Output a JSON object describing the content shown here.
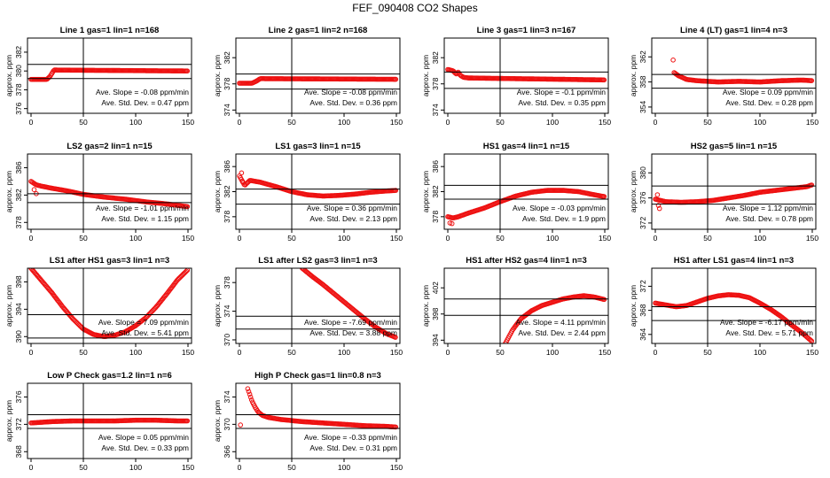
{
  "title": "FEF_090408  CO2 Shapes",
  "ylabel": "approx. ppm",
  "chart_data": [
    {
      "type": "scatter",
      "title": "Line 1 gas=1 lin=1 n=168",
      "xticks": [
        0,
        50,
        100,
        150
      ],
      "xlim": [
        0,
        150
      ],
      "yticks": [
        376,
        378,
        380,
        382
      ],
      "ylim": [
        375.5,
        383.5
      ],
      "hlines": [
        379.2,
        380.7
      ],
      "vline": 50,
      "slope": "Ave. Slope = -0.08 ppm/min",
      "std": "Ave. Std. Dev. = 0.47 ppm",
      "series": [
        {
          "x": [
            0,
            15,
            18,
            22,
            150
          ],
          "y": [
            379.1,
            379.1,
            379.4,
            380.1,
            380.0
          ]
        }
      ]
    },
    {
      "type": "scatter",
      "title": "Line 2 gas=1 lin=2 n=168",
      "xticks": [
        0,
        50,
        100,
        150
      ],
      "xlim": [
        0,
        150
      ],
      "yticks": [
        374,
        378,
        382
      ],
      "ylim": [
        373.5,
        385
      ],
      "hlines": [
        377.2,
        379.5
      ],
      "vline": 50,
      "slope": "Ave. Slope = -0.08 ppm/min",
      "std": "Ave. Std. Dev. = 0.36 ppm",
      "series": [
        {
          "x": [
            0,
            12,
            16,
            20,
            150
          ],
          "y": [
            378.1,
            378.1,
            378.4,
            378.8,
            378.7
          ]
        }
      ]
    },
    {
      "type": "scatter",
      "title": "Line 3 gas=1 lin=3 n=167",
      "xticks": [
        0,
        50,
        100,
        150
      ],
      "xlim": [
        0,
        150
      ],
      "yticks": [
        374,
        378,
        382
      ],
      "ylim": [
        373.5,
        385
      ],
      "hlines": [
        377.3,
        379.8
      ],
      "vline": 50,
      "slope": "Ave. Slope = -0.1 ppm/min",
      "std": "Ave. Std. Dev. = 0.35 ppm",
      "series": [
        {
          "x": [
            0,
            5,
            8,
            10,
            12,
            15,
            20,
            150
          ],
          "y": [
            380.2,
            380.0,
            379.5,
            379.8,
            379.3,
            379.0,
            378.9,
            378.6
          ]
        }
      ]
    },
    {
      "type": "scatter",
      "title": "Line 4 (LT) gas=1 lin=4 n=3",
      "xticks": [
        0,
        50,
        100,
        150
      ],
      "xlim": [
        0,
        150
      ],
      "yticks": [
        354,
        358,
        362
      ],
      "ylim": [
        353,
        365
      ],
      "hlines": [
        357.0,
        359.2
      ],
      "vline": 50,
      "slope": "Ave. Slope = 0.09 ppm/min",
      "std": "Ave. Std. Dev. = 0.28 ppm",
      "series": [
        {
          "x": [
            18,
            22,
            30,
            40,
            60,
            80,
            100,
            120,
            140,
            150
          ],
          "y": [
            359.5,
            359.0,
            358.4,
            358.2,
            358.0,
            358.1,
            358.0,
            358.2,
            358.3,
            358.2
          ]
        }
      ],
      "extra": [
        {
          "x": 17,
          "y": 361.5
        }
      ]
    },
    {
      "type": "scatter",
      "title": "LS2 gas=2 lin=1 n=15",
      "xticks": [
        0,
        50,
        100,
        150
      ],
      "xlim": [
        0,
        150
      ],
      "yticks": [
        378,
        382,
        386
      ],
      "ylim": [
        377,
        388
      ],
      "hlines": [
        380.9,
        382.2
      ],
      "vline": 50,
      "slope": "Ave. Slope = -1.01 ppm/min",
      "std": "Ave. Std. Dev. = 1.15 ppm",
      "series": [
        {
          "x": [
            0,
            5,
            10,
            20,
            35,
            50,
            70,
            90,
            110,
            130,
            150
          ],
          "y": [
            384.0,
            383.5,
            383.3,
            383.0,
            382.6,
            382.1,
            381.7,
            381.4,
            381.0,
            380.7,
            380.3
          ]
        }
      ],
      "extra": [
        {
          "x": 3,
          "y": 382.8
        },
        {
          "x": 5,
          "y": 382.2
        }
      ]
    },
    {
      "type": "scatter",
      "title": "LS1 gas=3 lin=1 n=15",
      "xticks": [
        0,
        50,
        100,
        150
      ],
      "xlim": [
        0,
        150
      ],
      "yticks": [
        378,
        382,
        386
      ],
      "ylim": [
        376,
        388
      ],
      "hlines": [
        380.0,
        382.4
      ],
      "vline": 50,
      "slope": "Ave. Slope = 0.36 ppm/min",
      "std": "Ave. Std. Dev. = 2.13 ppm",
      "series": [
        {
          "x": [
            0,
            5,
            10,
            20,
            35,
            50,
            65,
            80,
            95,
            110,
            125,
            140,
            150
          ],
          "y": [
            384.5,
            383.0,
            383.8,
            383.5,
            382.8,
            382.0,
            381.5,
            381.3,
            381.4,
            381.6,
            381.9,
            382.1,
            382.2
          ]
        }
      ],
      "extra": [
        {
          "x": 2,
          "y": 385.0
        },
        {
          "x": 3,
          "y": 383.6
        }
      ]
    },
    {
      "type": "scatter",
      "title": "HS1 gas=4 lin=1 n=15",
      "xticks": [
        0,
        50,
        100,
        150
      ],
      "xlim": [
        0,
        150
      ],
      "yticks": [
        378,
        382,
        386
      ],
      "ylim": [
        376,
        388
      ],
      "hlines": [
        380.8,
        383.0
      ],
      "vline": 50,
      "slope": "Ave. Slope = -0.03 ppm/min",
      "std": "Ave. Std. Dev. = 1.9 ppm",
      "series": [
        {
          "x": [
            0,
            5,
            10,
            20,
            35,
            50,
            65,
            80,
            95,
            110,
            125,
            140,
            150
          ],
          "y": [
            378.0,
            377.8,
            378.0,
            378.6,
            379.4,
            380.4,
            381.3,
            381.9,
            382.2,
            382.2,
            382.0,
            381.5,
            381.2
          ]
        }
      ],
      "extra": [
        {
          "x": 2,
          "y": 377.0
        },
        {
          "x": 4,
          "y": 376.9
        }
      ]
    },
    {
      "type": "scatter",
      "title": "HS2 gas=5 lin=1 n=15",
      "xticks": [
        0,
        50,
        100,
        150
      ],
      "xlim": [
        0,
        150
      ],
      "yticks": [
        372,
        376,
        380
      ],
      "ylim": [
        371,
        383
      ],
      "hlines": [
        375.0,
        377.9
      ],
      "vline": 50,
      "slope": "Ave. Slope = 1.12 ppm/min",
      "std": "Ave. Std. Dev. = 0.78 ppm",
      "series": [
        {
          "x": [
            0,
            10,
            25,
            40,
            55,
            70,
            85,
            100,
            115,
            130,
            145,
            150
          ],
          "y": [
            375.8,
            375.4,
            375.3,
            375.4,
            375.6,
            376.0,
            376.4,
            376.9,
            377.2,
            377.5,
            377.8,
            378.1
          ]
        }
      ],
      "extra": [
        {
          "x": 2,
          "y": 376.5
        },
        {
          "x": 3,
          "y": 374.8
        },
        {
          "x": 4,
          "y": 374.3
        }
      ]
    },
    {
      "type": "scatter",
      "title": "LS1 after HS1 gas=3 lin=1 n=3",
      "xticks": [
        0,
        50,
        100,
        150
      ],
      "xlim": [
        0,
        150
      ],
      "yticks": [
        390,
        394,
        398
      ],
      "ylim": [
        389,
        400
      ],
      "hlines": [
        389.8,
        393.2
      ],
      "vline": 50,
      "slope": "Ave. Slope = 7.09 ppm/min",
      "std": "Ave. Std. Dev. = 5.41 ppm",
      "series": [
        {
          "x": [
            0,
            10,
            20,
            30,
            40,
            50,
            60,
            70,
            80,
            90,
            100,
            110,
            120,
            130,
            140,
            150
          ],
          "y": [
            400,
            398.2,
            396.4,
            394.4,
            392.6,
            391.1,
            390.3,
            390.0,
            390.2,
            390.7,
            391.6,
            392.8,
            394.4,
            396.3,
            398.3,
            399.8
          ]
        }
      ]
    },
    {
      "type": "scatter",
      "title": "LS1 after LS2 gas=3 lin=1 n=3",
      "xticks": [
        0,
        50,
        100,
        150
      ],
      "xlim": [
        0,
        150
      ],
      "yticks": [
        370,
        374,
        378
      ],
      "ylim": [
        369.5,
        380
      ],
      "hlines": [
        371.5,
        373.3
      ],
      "vline": 50,
      "slope": "Ave. Slope = -7.69 ppm/min",
      "std": "Ave. Std. Dev. = 3.88 ppm",
      "series": [
        {
          "x": [
            60,
            70,
            80,
            90,
            100,
            110,
            120,
            130,
            140,
            150
          ],
          "y": [
            380,
            378.8,
            377.7,
            376.5,
            375.3,
            374.1,
            372.9,
            371.8,
            370.9,
            370.3
          ]
        }
      ]
    },
    {
      "type": "scatter",
      "title": "HS1 after HS2 gas=4 lin=1 n=3",
      "xticks": [
        0,
        50,
        100,
        150
      ],
      "xlim": [
        0,
        150
      ],
      "yticks": [
        394,
        398,
        402
      ],
      "ylim": [
        393.5,
        405
      ],
      "hlines": [
        397.8,
        400.3
      ],
      "vline": 50,
      "slope": "Ave. Slope = 4.11 ppm/min",
      "std": "Ave. Std. Dev. = 2.44 ppm",
      "series": [
        {
          "x": [
            55,
            62,
            70,
            80,
            90,
            100,
            110,
            120,
            130,
            140,
            150
          ],
          "y": [
            393.5,
            395.6,
            397.3,
            398.5,
            399.3,
            399.8,
            400.3,
            400.6,
            400.8,
            400.6,
            400.2
          ]
        }
      ]
    },
    {
      "type": "scatter",
      "title": "HS1 after LS1 gas=4 lin=1 n=3",
      "xticks": [
        0,
        50,
        100,
        150
      ],
      "xlim": [
        0,
        150
      ],
      "yticks": [
        364,
        368,
        372
      ],
      "ylim": [
        362.5,
        375
      ],
      "hlines": [
        366.3,
        368.6
      ],
      "vline": 50,
      "slope": "Ave. Slope = -6.17 ppm/min",
      "std": "Ave. Std. Dev. = 5.71 ppm",
      "series": [
        {
          "x": [
            0,
            10,
            20,
            30,
            40,
            50,
            60,
            70,
            80,
            90,
            100,
            110,
            120,
            130,
            140,
            150
          ],
          "y": [
            369.2,
            368.9,
            368.6,
            368.8,
            369.4,
            370.0,
            370.4,
            370.6,
            370.5,
            370.1,
            369.2,
            368.2,
            367.0,
            365.6,
            364.3,
            362.8
          ]
        }
      ]
    },
    {
      "type": "scatter",
      "title": "Low P Check gas=1.2 lin=1 n=6",
      "xticks": [
        0,
        50,
        100,
        150
      ],
      "xlim": [
        0,
        150
      ],
      "yticks": [
        368,
        372,
        376
      ],
      "ylim": [
        367,
        378
      ],
      "hlines": [
        371.4,
        373.4
      ],
      "vline": 50,
      "slope": "Ave. Slope = 0.05 ppm/min",
      "std": "Ave. Std. Dev. = 0.33 ppm",
      "series": [
        {
          "x": [
            0,
            20,
            40,
            60,
            80,
            100,
            120,
            140,
            150
          ],
          "y": [
            372.2,
            372.4,
            372.5,
            372.5,
            372.5,
            372.6,
            372.6,
            372.5,
            372.5
          ]
        }
      ]
    },
    {
      "type": "scatter",
      "title": "High P Check gas=1 lin=0.8 n=3",
      "xticks": [
        0,
        50,
        100,
        150
      ],
      "xlim": [
        0,
        150
      ],
      "yticks": [
        366,
        370,
        374
      ],
      "ylim": [
        365,
        376
      ],
      "hlines": [
        369.4,
        371.4
      ],
      "vline": 50,
      "slope": "Ave. Slope = -0.33 ppm/min",
      "std": "Ave. Std. Dev. = 0.31 ppm",
      "series": [
        {
          "x": [
            8,
            10,
            12,
            15,
            18,
            22,
            28,
            40,
            60,
            80,
            100,
            120,
            140,
            150
          ],
          "y": [
            375.2,
            374.3,
            373.4,
            372.5,
            371.8,
            371.3,
            371.0,
            370.7,
            370.4,
            370.2,
            370.0,
            369.8,
            369.7,
            369.6
          ]
        }
      ],
      "extra": [
        {
          "x": 1,
          "y": 369.9
        }
      ]
    }
  ]
}
